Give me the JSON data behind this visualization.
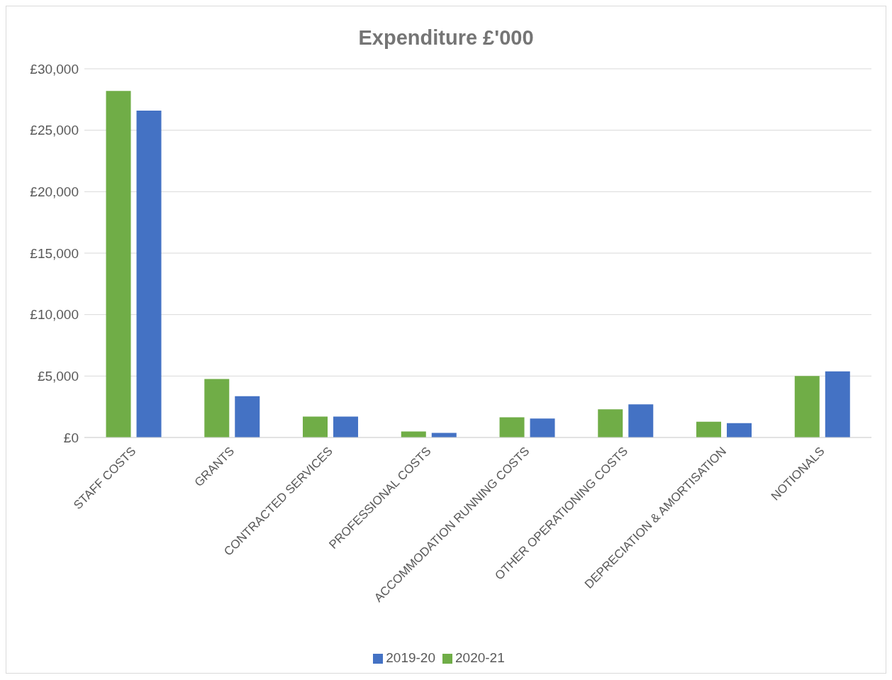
{
  "chart_data": {
    "type": "bar",
    "title": "Expenditure £'000",
    "categories": [
      "STAFF COSTS",
      "GRANTS",
      "CONTRACTED SERVICES",
      "PROFESSIONAL COSTS",
      "ACCOMMODATION RUNNING COSTS",
      "OTHER OPERATIONING COSTS",
      "DEPRECIATION & AMORTISATION",
      "NOTIONALS"
    ],
    "series": [
      {
        "name": "2020-21",
        "color": "#70ad47",
        "values": [
          28200,
          4760,
          1700,
          490,
          1650,
          2300,
          1280,
          5000
        ]
      },
      {
        "name": "2019-20",
        "color": "#4472c4",
        "values": [
          26600,
          3360,
          1700,
          370,
          1540,
          2700,
          1170,
          5380
        ]
      }
    ],
    "ylim": [
      0,
      30000
    ],
    "yticks": [
      {
        "value": 0,
        "label": "£0"
      },
      {
        "value": 5000,
        "label": "£5,000"
      },
      {
        "value": 10000,
        "label": "£10,000"
      },
      {
        "value": 15000,
        "label": "£15,000"
      },
      {
        "value": 20000,
        "label": "£20,000"
      },
      {
        "value": 25000,
        "label": "£25,000"
      },
      {
        "value": 30000,
        "label": "£30,000"
      }
    ],
    "grid": "y",
    "legend": "bottom"
  }
}
